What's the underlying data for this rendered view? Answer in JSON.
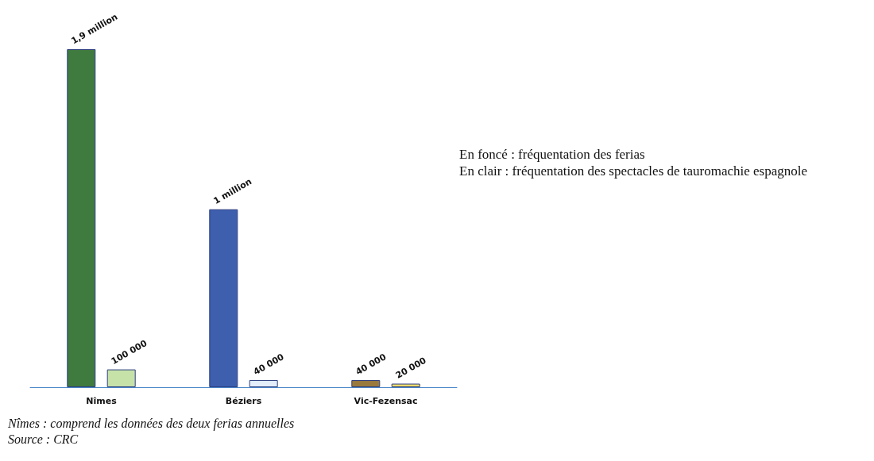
{
  "chart_data": {
    "type": "bar",
    "categories": [
      "Nîmes",
      "Béziers",
      "Vic-Fezensac"
    ],
    "series": [
      {
        "colors": [
          "#3f7a3f",
          "#3d5fae",
          "#9a7a3c"
        ],
        "values": [
          1900000,
          1000000,
          40000
        ],
        "value_labels": [
          "1,9 million",
          "1 million",
          "40 000"
        ]
      },
      {
        "colors": [
          "#c6e2a9",
          "#e3eefa",
          "#eedc6a"
        ],
        "values": [
          100000,
          40000,
          20000
        ],
        "value_labels": [
          "100 000",
          "40 000",
          "20 000"
        ]
      }
    ],
    "annotations": [
      "En foncé : fréquentation des ferias",
      "En clair : fréquentation des spectacles de tauromachie espagnole",
      "Nîmes : comprend les données des deux ferias annuelles",
      "Source : CRC"
    ]
  }
}
